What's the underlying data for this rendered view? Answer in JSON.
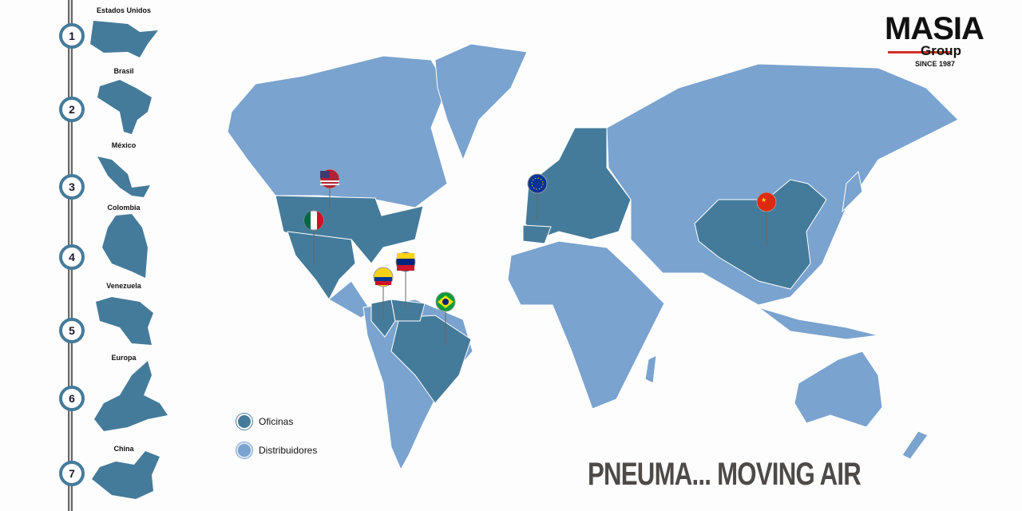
{
  "brand": {
    "name": "MASIA",
    "sub": "Group",
    "since": "SINCE 1987",
    "accent": "#d3302a"
  },
  "timeline": [
    {
      "num": "1",
      "label": "Estados Unidos"
    },
    {
      "num": "2",
      "label": "Brasil"
    },
    {
      "num": "3",
      "label": "México"
    },
    {
      "num": "4",
      "label": "Colombia"
    },
    {
      "num": "5",
      "label": "Venezuela"
    },
    {
      "num": "6",
      "label": "Europa"
    },
    {
      "num": "7",
      "label": "China"
    }
  ],
  "legend": {
    "offices": "Oficinas",
    "distributors": "Distribuidores"
  },
  "colors": {
    "offices": "#457b9a",
    "distributors": "#7aa3cf"
  },
  "pins": [
    "flag-usa",
    "flag-mexico",
    "flag-colombia",
    "flag-venezuela",
    "flag-brazil",
    "flag-eu",
    "flag-china"
  ],
  "slogan": "PNEUMA... MOVING AIR"
}
